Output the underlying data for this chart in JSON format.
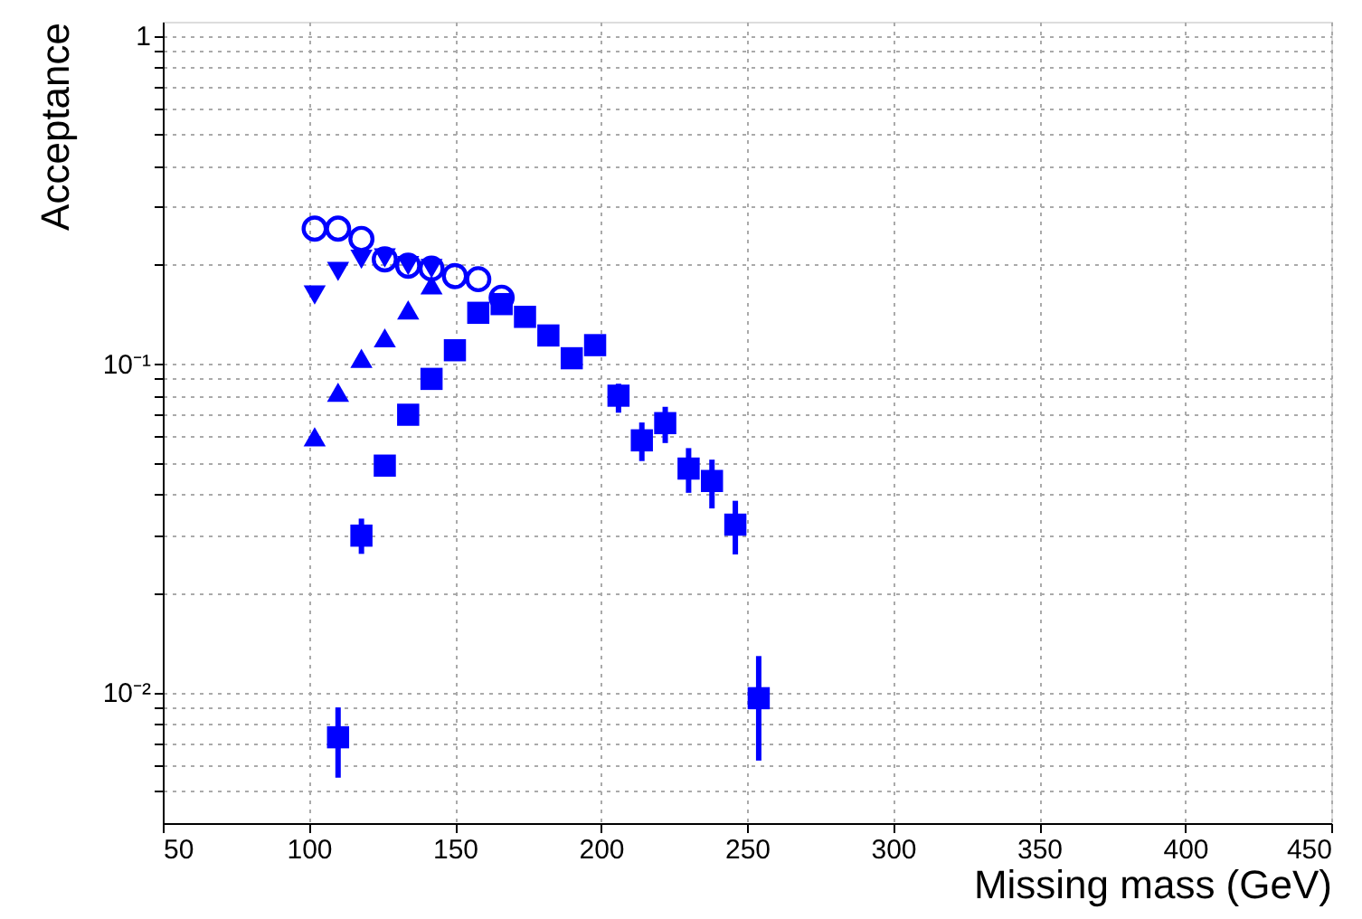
{
  "chart_data": {
    "type": "scatter",
    "xlabel": "Missing mass (GeV)",
    "ylabel": "Acceptance",
    "log": "y",
    "grid": true,
    "xlim": [
      50,
      450
    ],
    "xticks": [
      50,
      100,
      150,
      200,
      250,
      300,
      350,
      400,
      450
    ],
    "ylim": [
      0.004,
      1.1
    ],
    "yticks": [
      {
        "value": 0.005,
        "label": null
      },
      {
        "value": 0.006,
        "label": null
      },
      {
        "value": 0.007,
        "label": null
      },
      {
        "value": 0.008,
        "label": null
      },
      {
        "value": 0.009,
        "label": null
      },
      {
        "value": 0.01,
        "label": "10⁻²"
      },
      {
        "value": 0.02,
        "label": null
      },
      {
        "value": 0.03,
        "label": null
      },
      {
        "value": 0.04,
        "label": null
      },
      {
        "value": 0.05,
        "label": null
      },
      {
        "value": 0.06,
        "label": null
      },
      {
        "value": 0.07,
        "label": null
      },
      {
        "value": 0.08,
        "label": null
      },
      {
        "value": 0.09,
        "label": null
      },
      {
        "value": 0.1,
        "label": "10⁻¹"
      },
      {
        "value": 0.2,
        "label": null
      },
      {
        "value": 0.3,
        "label": null
      },
      {
        "value": 0.4,
        "label": null
      },
      {
        "value": 0.5,
        "label": null
      },
      {
        "value": 0.6,
        "label": null
      },
      {
        "value": 0.7,
        "label": null
      },
      {
        "value": 0.8,
        "label": null
      },
      {
        "value": 0.9,
        "label": null
      },
      {
        "value": 1,
        "label": "1"
      }
    ],
    "series": [
      {
        "color": "#0000ff",
        "marker": "circle",
        "x": [
          102,
          110,
          118,
          126,
          134,
          142,
          150,
          158,
          166
        ],
        "values": [
          0.258,
          0.258,
          0.24,
          0.208,
          0.199,
          0.195,
          0.185,
          0.181,
          0.159
        ]
      },
      {
        "color": "#0000ff",
        "marker": "triangle-down",
        "x": [
          102,
          110,
          118,
          126,
          134,
          142
        ],
        "values": [
          0.162,
          0.191,
          0.208,
          0.21,
          0.199,
          0.195
        ]
      },
      {
        "color": "#0000ff",
        "marker": "triangle",
        "x": [
          102,
          110,
          118,
          126,
          134,
          142
        ],
        "values": [
          0.06,
          0.082,
          0.104,
          0.12,
          0.146,
          0.174
        ]
      },
      {
        "color": "#0000ff",
        "marker": "square",
        "x": [
          110,
          118,
          126,
          134,
          142,
          150,
          158,
          166,
          174,
          182,
          190,
          198,
          206,
          214,
          222,
          230,
          238,
          246,
          254
        ],
        "values": [
          0.0073,
          0.03,
          0.049,
          0.07,
          0.09,
          0.11,
          0.143,
          0.152,
          0.139,
          0.122,
          0.104,
          0.114,
          0.08,
          0.0585,
          0.066,
          0.048,
          0.044,
          0.0324,
          0.0096
        ],
        "errors": [
          [
            0.0055,
            0.009
          ],
          [
            0.0264,
            0.0338
          ],
          null,
          null,
          null,
          null,
          null,
          null,
          null,
          null,
          null,
          null,
          [
            0.071,
            0.087
          ],
          [
            0.0506,
            0.0663
          ],
          [
            0.0574,
            0.074
          ],
          [
            0.0405,
            0.0554
          ],
          [
            0.0363,
            0.0511
          ],
          [
            0.0263,
            0.0383
          ],
          [
            0.0062,
            0.0129
          ]
        ]
      }
    ]
  }
}
